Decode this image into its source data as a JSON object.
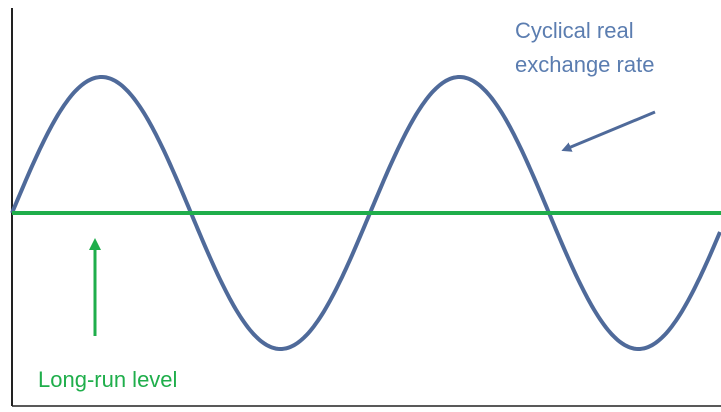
{
  "curve_label": {
    "line1": "Cyclical real",
    "line2": "exchange rate"
  },
  "level_label": "Long-run level"
}
